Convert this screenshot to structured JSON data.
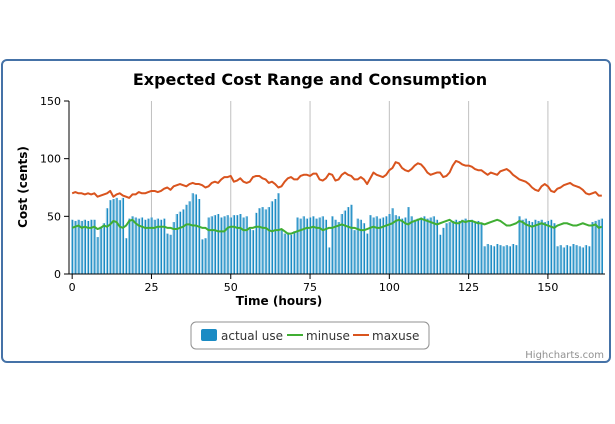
{
  "chart_data": {
    "type": "bar",
    "title": "Expected Cost Range and Consumption",
    "xlabel": "Time (hours)",
    "ylabel": "Cost (cents)",
    "xlim": [
      -1,
      168
    ],
    "ylim": [
      0,
      150
    ],
    "x_ticks": [
      0,
      25,
      50,
      75,
      100,
      125,
      150
    ],
    "y_ticks": [
      0,
      50,
      100,
      150
    ],
    "grid": "vertical",
    "legend_position": "bottom-center",
    "credit": "Highcharts.com",
    "series": [
      {
        "name": "actual use",
        "type": "column",
        "color": "#1a8bc4",
        "values": [
          47,
          46,
          47,
          46,
          47,
          46,
          47,
          47,
          32,
          41,
          44,
          57,
          64,
          65,
          66,
          64,
          66,
          31,
          48,
          50,
          49,
          48,
          49,
          47,
          48,
          49,
          47,
          48,
          47,
          48,
          35,
          34,
          45,
          52,
          54,
          56,
          60,
          63,
          70,
          69,
          65,
          30,
          31,
          49,
          50,
          51,
          52,
          49,
          50,
          51,
          49,
          51,
          51,
          52,
          49,
          50,
          39,
          38,
          53,
          57,
          58,
          56,
          58,
          63,
          65,
          70,
          38,
          35,
          36,
          34,
          37,
          49,
          48,
          50,
          48,
          49,
          50,
          48,
          49,
          50,
          47,
          23,
          50,
          47,
          45,
          52,
          55,
          58,
          60,
          38,
          48,
          47,
          44,
          35,
          51,
          49,
          50,
          48,
          49,
          50,
          52,
          57,
          51,
          50,
          48,
          49,
          58,
          50,
          47,
          48,
          49,
          50,
          48,
          49,
          50,
          47,
          34,
          40,
          44,
          45,
          46,
          47,
          46,
          47,
          48,
          46,
          47,
          45,
          46,
          44,
          24,
          26,
          25,
          24,
          26,
          25,
          24,
          25,
          24,
          26,
          25,
          50,
          47,
          48,
          46,
          45,
          47,
          46,
          47,
          45,
          46,
          47,
          44,
          24,
          25,
          23,
          25,
          24,
          26,
          25,
          24,
          23,
          25,
          24,
          45,
          46,
          47,
          48
        ]
      },
      {
        "name": "minuse",
        "type": "line",
        "color": "#40ae33",
        "values": [
          40,
          41,
          42,
          40,
          41,
          40,
          40,
          41,
          39,
          40,
          42,
          41,
          43,
          46,
          45,
          41,
          40,
          42,
          46,
          47,
          44,
          42,
          41,
          40,
          40,
          40,
          40,
          41,
          41,
          41,
          40,
          40,
          39,
          39,
          40,
          41,
          43,
          43,
          42,
          42,
          41,
          40,
          40,
          38,
          38,
          38,
          37,
          37,
          37,
          40,
          41,
          41,
          40,
          40,
          38,
          38,
          40,
          40,
          41,
          41,
          40,
          40,
          38,
          37,
          38,
          38,
          39,
          37,
          35,
          35,
          36,
          37,
          38,
          39,
          40,
          40,
          41,
          40,
          40,
          38,
          39,
          40,
          40,
          41,
          42,
          43,
          42,
          41,
          40,
          40,
          39,
          38,
          38,
          39,
          40,
          41,
          40,
          40,
          41,
          42,
          43,
          44,
          46,
          47,
          46,
          44,
          43,
          45,
          46,
          47,
          48,
          47,
          46,
          45,
          44,
          43,
          44,
          45,
          46,
          47,
          45,
          44,
          44,
          46,
          45,
          46,
          46,
          45,
          44,
          44,
          43,
          44,
          45,
          46,
          47,
          46,
          44,
          42,
          42,
          43,
          44,
          46,
          45,
          43,
          42,
          41,
          42,
          43,
          44,
          43,
          42,
          41,
          40,
          42,
          43,
          44,
          44,
          43,
          42,
          42,
          43,
          44,
          43,
          42,
          42,
          43,
          40,
          41
        ]
      },
      {
        "name": "maxuse",
        "type": "line",
        "color": "#d9541e",
        "values": [
          70,
          71,
          70,
          70,
          69,
          70,
          69,
          70,
          67,
          68,
          69,
          70,
          72,
          67,
          69,
          70,
          68,
          67,
          66,
          69,
          69,
          71,
          70,
          70,
          71,
          72,
          72,
          71,
          72,
          74,
          75,
          73,
          76,
          77,
          78,
          77,
          76,
          78,
          79,
          78,
          78,
          77,
          75,
          76,
          79,
          80,
          79,
          82,
          84,
          84,
          85,
          80,
          81,
          83,
          80,
          79,
          80,
          84,
          85,
          85,
          83,
          82,
          79,
          80,
          78,
          75,
          76,
          80,
          83,
          84,
          82,
          82,
          85,
          86,
          86,
          85,
          87,
          87,
          82,
          81,
          83,
          87,
          86,
          81,
          82,
          86,
          88,
          86,
          85,
          82,
          82,
          84,
          82,
          78,
          83,
          88,
          86,
          85,
          84,
          86,
          90,
          92,
          97,
          96,
          92,
          90,
          89,
          91,
          94,
          96,
          95,
          92,
          88,
          86,
          87,
          88,
          88,
          84,
          85,
          88,
          94,
          98,
          97,
          95,
          94,
          94,
          93,
          91,
          90,
          90,
          88,
          86,
          88,
          87,
          86,
          89,
          90,
          91,
          89,
          86,
          84,
          82,
          81,
          80,
          78,
          75,
          73,
          72,
          76,
          78,
          76,
          72,
          71,
          74,
          75,
          77,
          78,
          79,
          77,
          76,
          75,
          73,
          70,
          69,
          70,
          71,
          68,
          68
        ]
      }
    ]
  }
}
